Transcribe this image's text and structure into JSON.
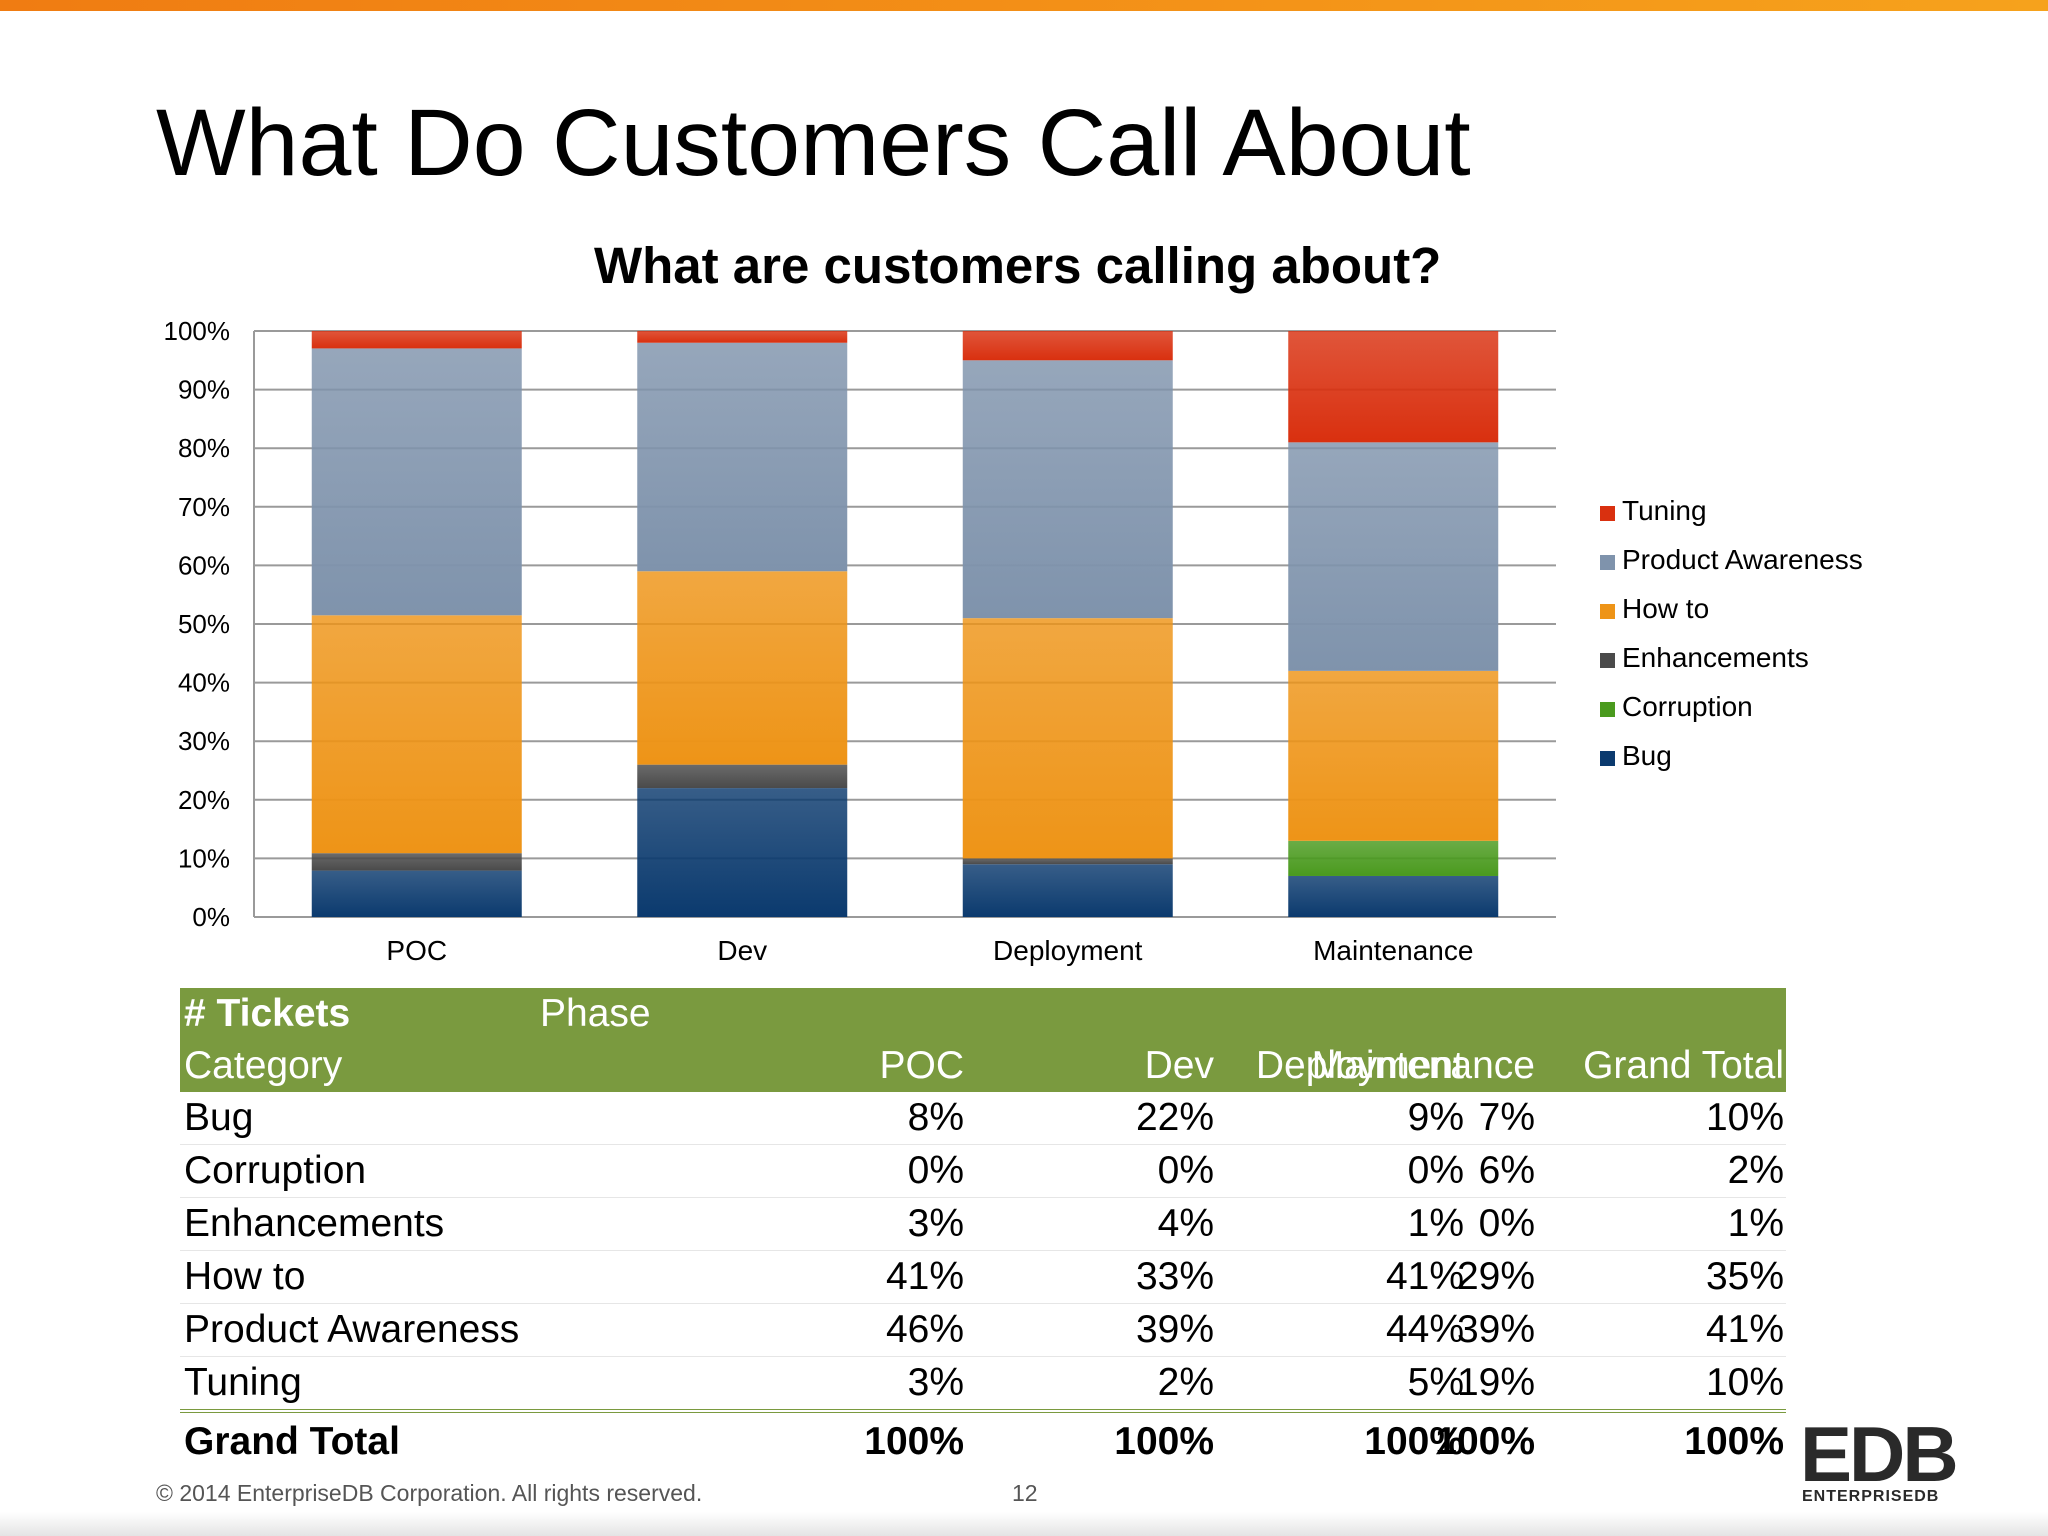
{
  "slide": {
    "title": "What Do Customers Call About",
    "footer_copyright": "© 2014 EnterpriseDB Corporation. All rights reserved.",
    "page_number": "12",
    "logo_text": "EDB",
    "logo_subtext": "ENTERPRISEDB"
  },
  "chart_data": {
    "type": "bar",
    "stacked": "percent",
    "title": "What are customers calling about?",
    "categories": [
      "POC",
      "Dev",
      "Deployment",
      "Maintenance"
    ],
    "series": [
      {
        "name": "Bug",
        "values": [
          8,
          22,
          9,
          7
        ],
        "color": "#0b3a6e"
      },
      {
        "name": "Corruption",
        "values": [
          0,
          0,
          0,
          6
        ],
        "color": "#4a9a1e"
      },
      {
        "name": "Enhancements",
        "values": [
          3,
          4,
          1,
          0
        ],
        "color": "#4a4a4a"
      },
      {
        "name": "How to",
        "values": [
          41,
          33,
          41,
          29
        ],
        "color": "#ee9417"
      },
      {
        "name": "Product Awareness",
        "values": [
          46,
          39,
          44,
          39
        ],
        "color": "#7f93ac"
      },
      {
        "name": "Tuning",
        "values": [
          3,
          2,
          5,
          19
        ],
        "color": "#d9300f"
      }
    ],
    "y_ticks": [
      "0%",
      "10%",
      "20%",
      "30%",
      "40%",
      "50%",
      "60%",
      "70%",
      "80%",
      "90%",
      "100%"
    ],
    "ylim": [
      0,
      100
    ],
    "grid": true,
    "legend_position": "right"
  },
  "table": {
    "corner_label": "# Tickets",
    "phase_label": "Phase",
    "headers": [
      "Category",
      "POC",
      "Dev",
      "Deployment",
      "Maintenance",
      "Grand Total"
    ],
    "rows": [
      [
        "Bug",
        "8%",
        "22%",
        "9%",
        "7%",
        "10%"
      ],
      [
        "Corruption",
        "0%",
        "0%",
        "0%",
        "6%",
        "2%"
      ],
      [
        "Enhancements",
        "3%",
        "4%",
        "1%",
        "0%",
        "1%"
      ],
      [
        "How to",
        "41%",
        "33%",
        "41%",
        "29%",
        "35%"
      ],
      [
        "Product Awareness",
        "46%",
        "39%",
        "44%",
        "39%",
        "41%"
      ],
      [
        "Tuning",
        "3%",
        "2%",
        "5%",
        "19%",
        "10%"
      ]
    ],
    "total_row": [
      "Grand Total",
      "100%",
      "100%",
      "100%",
      "100%",
      "100%"
    ]
  }
}
